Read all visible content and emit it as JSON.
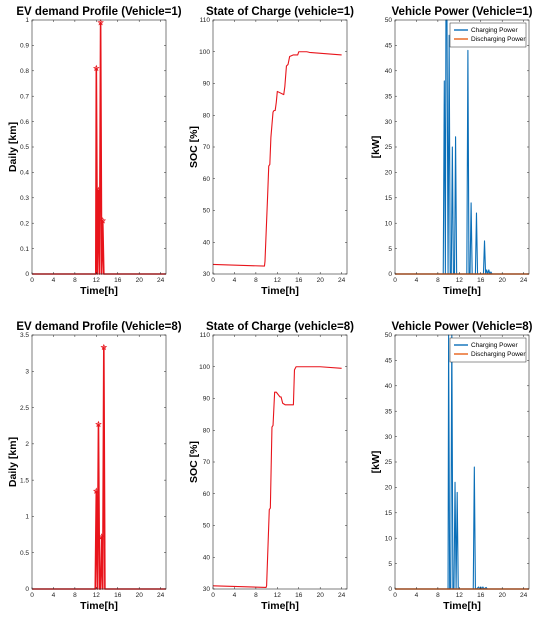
{
  "colors": {
    "red": "#e8141b",
    "blue": "#0b6fb8",
    "orange": "#e8621a",
    "axis": "#262626"
  },
  "chart_data": [
    {
      "type": "line",
      "title": "EV demand Profile (Vehicle=1)",
      "xlabel": "Time[h]",
      "ylabel": "Daily [km]",
      "xlim": [
        0,
        25
      ],
      "ylim": [
        0,
        1
      ],
      "xticks": [
        "0",
        "4",
        "8",
        "12",
        "16",
        "20",
        "24"
      ],
      "yticks": [
        "0",
        "0.1",
        "0.2",
        "0.3",
        "0.4",
        "0.5",
        "0.6",
        "0.7",
        "0.8",
        "0.9",
        "1"
      ],
      "xtick_values": [
        0,
        4,
        8,
        12,
        16,
        20,
        24
      ],
      "ytick_values": [
        0,
        0.1,
        0.2,
        0.3,
        0.4,
        0.5,
        0.6,
        0.7,
        0.8,
        0.9,
        1
      ],
      "grid": false,
      "series": [
        {
          "color": "#e8141b",
          "marker": "star",
          "x": [
            0,
            11.9,
            12.0,
            12.2,
            12.4,
            12.6,
            12.8,
            13.0,
            13.2,
            13.4,
            13.6,
            25
          ],
          "y": [
            0,
            0,
            0.81,
            0,
            0.33,
            0,
            0.99,
            0,
            0.21,
            0,
            0,
            0
          ]
        }
      ]
    },
    {
      "type": "line",
      "title": "State of Charge (vehicle=1)",
      "xlabel": "Time[h]",
      "ylabel": "SOC [%]",
      "xlim": [
        0,
        25
      ],
      "ylim": [
        30,
        110
      ],
      "xticks": [
        "0",
        "4",
        "8",
        "12",
        "16",
        "20",
        "24"
      ],
      "yticks": [
        "30",
        "40",
        "50",
        "60",
        "70",
        "80",
        "90",
        "100",
        "110"
      ],
      "xtick_values": [
        0,
        4,
        8,
        12,
        16,
        20,
        24
      ],
      "ytick_values": [
        30,
        40,
        50,
        60,
        70,
        80,
        90,
        100,
        110
      ],
      "grid": false,
      "series": [
        {
          "color": "#e8141b",
          "x": [
            0,
            9.6,
            9.7,
            10.2,
            10.4,
            10.6,
            10.8,
            11.2,
            11.4,
            11.6,
            11.8,
            12.0,
            13.2,
            13.4,
            13.7,
            14.0,
            14.3,
            15.0,
            15.8,
            16.0,
            16.5,
            17.5,
            18,
            24
          ],
          "y": [
            33,
            32.5,
            34,
            55,
            64,
            64.5,
            73,
            81,
            81.5,
            81.5,
            84,
            87.5,
            86.5,
            89,
            95.5,
            96,
            98.5,
            99,
            99,
            100,
            100,
            100,
            99.8,
            99
          ]
        }
      ]
    },
    {
      "type": "line",
      "title": "Vehicle Power (Vehicle=1)",
      "xlabel": "Time[h]",
      "ylabel": "[kW]",
      "xlim": [
        0,
        25
      ],
      "ylim": [
        0,
        50
      ],
      "xticks": [
        "0",
        "4",
        "8",
        "12",
        "16",
        "20",
        "24"
      ],
      "yticks": [
        "0",
        "5",
        "10",
        "15",
        "20",
        "25",
        "30",
        "35",
        "40",
        "45",
        "50"
      ],
      "xtick_values": [
        0,
        4,
        8,
        12,
        16,
        20,
        24
      ],
      "ytick_values": [
        0,
        5,
        10,
        15,
        20,
        25,
        30,
        35,
        40,
        45,
        50
      ],
      "legend": "top-right",
      "grid": false,
      "series": [
        {
          "name": "Charging Power",
          "color": "#0b6fb8",
          "x": [
            0,
            8.9,
            9.0,
            9.2,
            9.4,
            9.5,
            9.7,
            9.9,
            10.1,
            10.3,
            10.5,
            10.7,
            10.9,
            11.1,
            11.3,
            11.5,
            11.7,
            11.9,
            12.3,
            12.5,
            12.7,
            12.9,
            13.0,
            13.2,
            13.4,
            13.6,
            13.8,
            14.0,
            14.2,
            14.4,
            14.6,
            14.8,
            15.0,
            15.2,
            15.4,
            15.6,
            15.8,
            16.5,
            16.7,
            16.9,
            17.1,
            17.3,
            17.5,
            17.7,
            17.9,
            18.1,
            25
          ],
          "y": [
            0,
            0,
            0,
            38,
            0,
            50,
            50,
            0,
            47,
            0,
            0,
            25,
            0,
            0,
            27,
            0,
            0,
            0,
            0,
            0,
            0,
            0,
            0,
            0,
            0,
            44,
            0,
            0,
            14,
            0,
            0,
            0,
            0,
            12,
            0,
            0,
            0,
            0,
            6.5,
            0,
            0.8,
            0,
            0.8,
            0,
            0.4,
            0,
            0
          ]
        },
        {
          "name": "Discharging Power",
          "color": "#e8621a",
          "x": [
            0,
            25
          ],
          "y": [
            0,
            0
          ]
        }
      ]
    },
    {
      "type": "line",
      "title": "EV demand Profile (Vehicle=8)",
      "xlabel": "Time[h]",
      "ylabel": "Daily [km]",
      "xlim": [
        0,
        25
      ],
      "ylim": [
        0,
        3.5
      ],
      "xticks": [
        "0",
        "4",
        "8",
        "12",
        "16",
        "20",
        "24"
      ],
      "yticks": [
        "0",
        "0.5",
        "1",
        "1.5",
        "2",
        "2.5",
        "3",
        "3.5"
      ],
      "xtick_values": [
        0,
        4,
        8,
        12,
        16,
        20,
        24
      ],
      "ytick_values": [
        0,
        0.5,
        1,
        1.5,
        2,
        2.5,
        3,
        3.5
      ],
      "grid": false,
      "series": [
        {
          "color": "#e8141b",
          "marker": "star",
          "x": [
            0,
            11.8,
            12.0,
            12.2,
            12.4,
            12.6,
            12.8,
            13.0,
            13.2,
            13.4,
            13.6,
            25
          ],
          "y": [
            0,
            0,
            1.35,
            0,
            2.27,
            0,
            0,
            0.72,
            0,
            3.33,
            0,
            0
          ]
        }
      ]
    },
    {
      "type": "line",
      "title": "State of Charge (vehicle=8)",
      "xlabel": "Time[h]",
      "ylabel": "SOC [%]",
      "xlim": [
        0,
        25
      ],
      "ylim": [
        30,
        110
      ],
      "xticks": [
        "0",
        "4",
        "8",
        "12",
        "16",
        "20",
        "24"
      ],
      "yticks": [
        "30",
        "40",
        "50",
        "60",
        "70",
        "80",
        "90",
        "100",
        "110"
      ],
      "xtick_values": [
        0,
        4,
        8,
        12,
        16,
        20,
        24
      ],
      "ytick_values": [
        30,
        40,
        50,
        60,
        70,
        80,
        90,
        100,
        110
      ],
      "grid": false,
      "series": [
        {
          "color": "#e8141b",
          "x": [
            0,
            9.9,
            10.0,
            10.5,
            10.7,
            11.0,
            11.2,
            11.5,
            11.8,
            12.5,
            12.7,
            13.0,
            13.5,
            14.0,
            15.0,
            15.2,
            15.5,
            16.0,
            17.0,
            20,
            24
          ],
          "y": [
            31,
            30.5,
            31,
            55,
            55.5,
            81,
            81.5,
            92,
            92,
            90.5,
            90.5,
            88.5,
            88,
            88,
            88,
            99,
            100,
            100,
            100,
            100,
            99.5
          ]
        }
      ]
    },
    {
      "type": "line",
      "title": "Vehicle Power (Vehicle=8)",
      "xlabel": "Time[h]",
      "ylabel": "[kW]",
      "xlim": [
        0,
        25
      ],
      "ylim": [
        0,
        50
      ],
      "xticks": [
        "0",
        "4",
        "8",
        "12",
        "16",
        "20",
        "24"
      ],
      "yticks": [
        "0",
        "5",
        "10",
        "15",
        "20",
        "25",
        "30",
        "35",
        "40",
        "45",
        "50"
      ],
      "xtick_values": [
        0,
        4,
        8,
        12,
        16,
        20,
        24
      ],
      "ytick_values": [
        0,
        5,
        10,
        15,
        20,
        25,
        30,
        35,
        40,
        45,
        50
      ],
      "legend": "top-right",
      "grid": false,
      "series": [
        {
          "name": "Charging Power",
          "color": "#0b6fb8",
          "x": [
            0,
            9.9,
            10.0,
            10.2,
            10.4,
            10.6,
            10.8,
            11.0,
            11.2,
            11.4,
            11.6,
            11.8,
            12.0,
            14.6,
            14.8,
            15.0,
            15.2,
            15.6,
            15.8,
            16.0,
            16.2,
            16.4,
            16.6,
            17.0,
            17.2,
            17.4,
            25
          ],
          "y": [
            0,
            0,
            50,
            0,
            0,
            50,
            0,
            0,
            21,
            0,
            19,
            0,
            0,
            0,
            24,
            0,
            0,
            0.4,
            0,
            0.4,
            0,
            0.4,
            0,
            0.3,
            0,
            0,
            0
          ]
        },
        {
          "name": "Discharging Power",
          "color": "#e8621a",
          "x": [
            0,
            25
          ],
          "y": [
            0,
            0
          ]
        }
      ]
    }
  ]
}
